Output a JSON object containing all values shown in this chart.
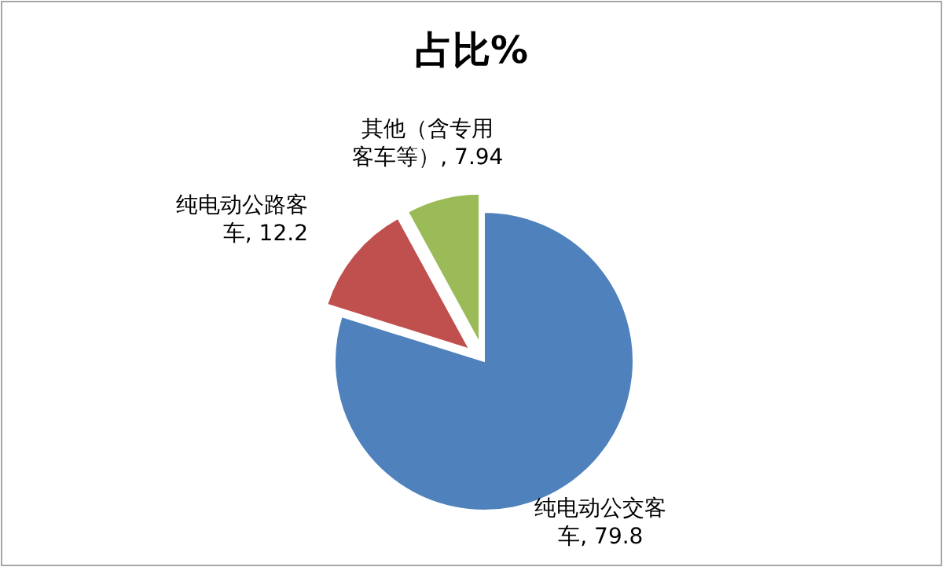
{
  "chart_data": {
    "type": "pie",
    "title": "占比%",
    "categories": [
      "纯电动公交客车",
      "纯电动公路客车",
      "其他（含专用客车等）"
    ],
    "values": [
      79.8,
      12.2,
      7.94
    ],
    "value_labels": [
      ", 79.8",
      ", 12.2",
      ", 7.94"
    ],
    "colors": [
      "#4f81bd",
      "#c0504d",
      "#9bbb59"
    ]
  }
}
